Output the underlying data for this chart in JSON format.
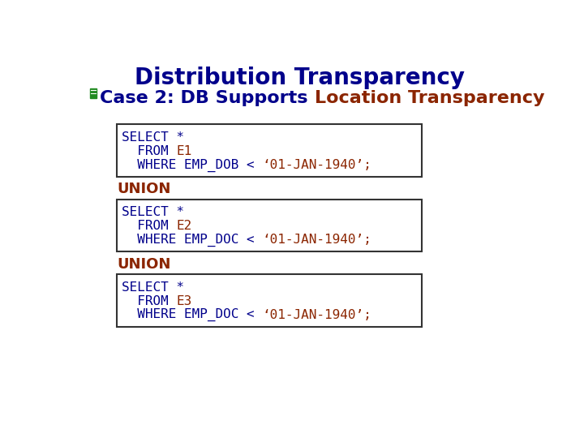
{
  "title": "Distribution Transparency",
  "title_color": "#00008B",
  "title_fontsize": 20,
  "subtitle_prefix": "Case 2: DB Supports ",
  "subtitle_highlight": "Location Transparency",
  "subtitle_prefix_color": "#00008B",
  "subtitle_highlight_color": "#8B2500",
  "subtitle_fontsize": 16,
  "icon_color": "#228B22",
  "code_blocks": [
    {
      "lines": [
        [
          {
            "t": "SELECT *",
            "c": "#00008B"
          }
        ],
        [
          {
            "t": "  FROM ",
            "c": "#00008B"
          },
          {
            "t": "E1",
            "c": "#8B2500"
          }
        ],
        [
          {
            "t": "  WHERE EMP_DOB < ",
            "c": "#00008B"
          },
          {
            "t": "‘01-JAN-1940’;",
            "c": "#8B2500"
          }
        ]
      ]
    },
    {
      "lines": [
        [
          {
            "t": "SELECT *",
            "c": "#00008B"
          }
        ],
        [
          {
            "t": "  FROM ",
            "c": "#00008B"
          },
          {
            "t": "E2",
            "c": "#8B2500"
          }
        ],
        [
          {
            "t": "  WHERE EMP_DOC < ",
            "c": "#00008B"
          },
          {
            "t": "‘01-JAN-1940’;",
            "c": "#8B2500"
          }
        ]
      ]
    },
    {
      "lines": [
        [
          {
            "t": "SELECT *",
            "c": "#00008B"
          }
        ],
        [
          {
            "t": "  FROM ",
            "c": "#00008B"
          },
          {
            "t": "E3",
            "c": "#8B2500"
          }
        ],
        [
          {
            "t": "  WHERE EMP_DOC < ",
            "c": "#00008B"
          },
          {
            "t": "‘01-JAN-1940’;",
            "c": "#8B2500"
          }
        ]
      ]
    }
  ],
  "union_text": "UNION",
  "union_color": "#8B2500",
  "bg_color": "#ffffff",
  "box_edge_color": "#333333",
  "code_fontsize": 11.5
}
